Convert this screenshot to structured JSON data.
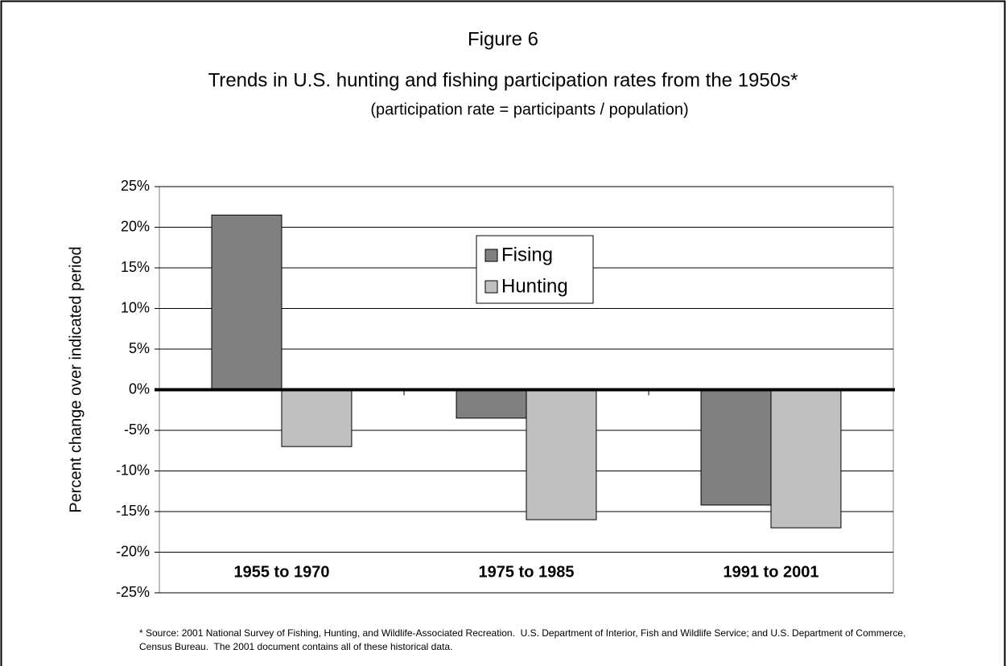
{
  "chart_data": {
    "type": "bar",
    "title": "Figure 6",
    "subtitle": "Trends in U.S. hunting and fishing participation rates from the 1950s*",
    "subtitle_note": "(participation rate = participants / population)",
    "y_label": "Percent change over indicated period",
    "categories": [
      "1955 to 1970",
      "1975 to 1985",
      "1991 to 2001"
    ],
    "series": [
      {
        "name": "Fising",
        "color": "#808080",
        "values": [
          21.5,
          -3.5,
          -14.2
        ]
      },
      {
        "name": "Hunting",
        "color": "#c0c0c0",
        "values": [
          -7,
          -16,
          -17
        ]
      }
    ],
    "ylim": [
      -25,
      25
    ],
    "yticks": [
      {
        "value": -25,
        "label": "-25%"
      },
      {
        "value": -20,
        "label": "-20%"
      },
      {
        "value": -15,
        "label": "-15%"
      },
      {
        "value": -10,
        "label": "-10%"
      },
      {
        "value": -5,
        "label": "-5%"
      },
      {
        "value": 0,
        "label": "0%"
      },
      {
        "value": 5,
        "label": "5%"
      },
      {
        "value": 10,
        "label": "10%"
      },
      {
        "value": 15,
        "label": "15%"
      },
      {
        "value": 20,
        "label": "20%"
      },
      {
        "value": 25,
        "label": "25%"
      }
    ],
    "grid": true,
    "source_note": "* Source: 2001 National Survey of Fishing, Hunting, and Wildlife-Associated Recreation.  U.S. Department of Interior, Fish and Wildlife Service; and U.S. Department of Commerce, Census Bureau.  The 2001 document contains all of these historical data."
  }
}
